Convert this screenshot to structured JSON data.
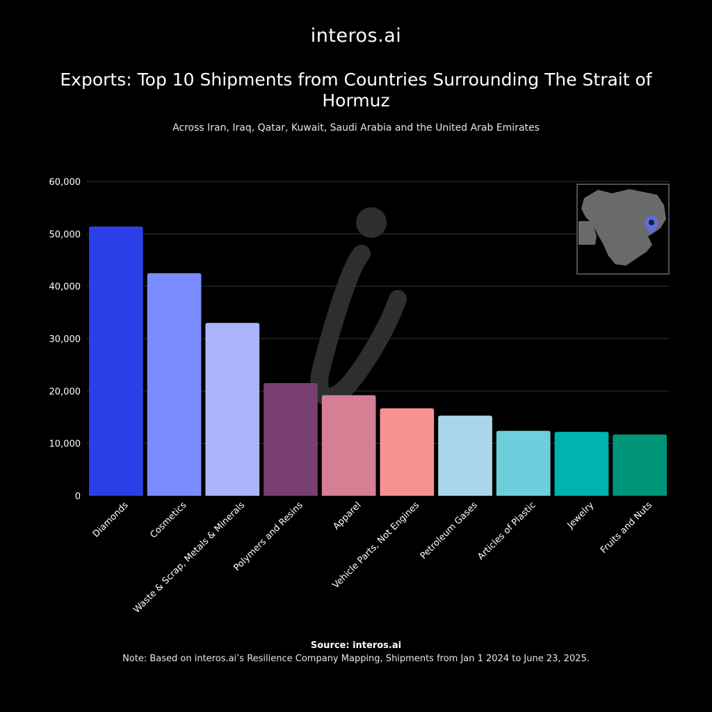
{
  "logo": {
    "text": "interos.ai"
  },
  "title": "Exports: Top 10 Shipments from Countries Surrounding The Strait of Hormuz",
  "subtitle": "Across Iran, Iraq, Qatar, Kuwait, Saudi Arabia and the United Arab Emirates",
  "footer": {
    "source": "Source: interos.ai",
    "note": "Note: Based on interos.ai’s Resilience Company Mapping, Shipments from Jan 1 2024 to June 23, 2025."
  },
  "chart_data": {
    "type": "bar",
    "title": "Exports: Top 10 Shipments from Countries Surrounding The Strait of Hormuz",
    "subtitle": "Across Iran, Iraq, Qatar, Kuwait, Saudi Arabia and the United Arab Emirates",
    "xlabel": "",
    "ylabel": "",
    "ylim": [
      0,
      60000
    ],
    "yticks": [
      0,
      10000,
      20000,
      30000,
      40000,
      50000,
      60000
    ],
    "ytick_labels": [
      "0",
      "10,000",
      "20,000",
      "30,000",
      "40,000",
      "50,000",
      "60,000"
    ],
    "grid": true,
    "categories": [
      "Diamonds",
      "Cosmetics",
      "Waste & Scrap, Metals & Minerals",
      "Polymers and Resins",
      "Apparel",
      "Vehicle Parts, Not Engines",
      "Petroleum Gases",
      "Articles of Plastic",
      "Jewelry",
      "Fruits and Nuts"
    ],
    "values": [
      51400,
      42500,
      33000,
      21500,
      19200,
      16700,
      15300,
      12400,
      12200,
      11700
    ],
    "colors": [
      "#2a3fe6",
      "#7a8cff",
      "#aab4f8",
      "#7a3f72",
      "#d47f94",
      "#f79290",
      "#a9d6ea",
      "#6dcfdb",
      "#00b3ae",
      "#009478"
    ]
  },
  "inset_map": {
    "icon": "location-pin-icon",
    "region": "Middle East",
    "pin_color": "#5b6fd6"
  }
}
